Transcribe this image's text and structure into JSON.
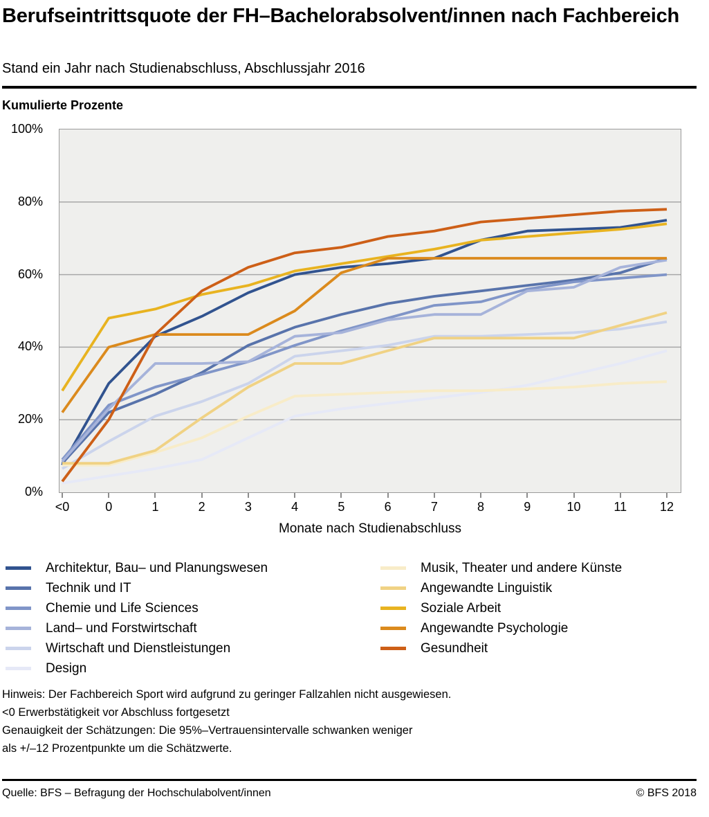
{
  "header": {
    "title": "Berufseintrittsquote der FH–Bachelorabsolvent/innen nach Fachbereich",
    "subtitle": "Stand ein Jahr nach Studienabschluss, Abschlussjahr 2016"
  },
  "chart_data": {
    "type": "line",
    "title": "Berufseintrittsquote der FH–Bachelorabsolvent/innen nach Fachbereich",
    "ylabel": "Kumulierte Prozente",
    "xlabel": "Monate nach Studienabschluss",
    "ylim": [
      0,
      100
    ],
    "grid": true,
    "legend_position": "bottom",
    "y_ticks": [
      0,
      20,
      40,
      60,
      80,
      100
    ],
    "y_tick_labels": [
      "0%",
      "20%",
      "40%",
      "60%",
      "80%",
      "100%"
    ],
    "categories": [
      "<0",
      "0",
      "1",
      "2",
      "3",
      "4",
      "5",
      "6",
      "7",
      "8",
      "9",
      "10",
      "11",
      "12"
    ],
    "series": [
      {
        "name": "Architektur, Bau– und Planungswesen",
        "color": "#31538f",
        "values": [
          7.5,
          30,
          43,
          48.5,
          55,
          60,
          62,
          63,
          64.5,
          69.5,
          72,
          72.5,
          73,
          75
        ]
      },
      {
        "name": "Technik und IT",
        "color": "#5873ab",
        "values": [
          8,
          22,
          27,
          33,
          40.5,
          45.5,
          49,
          52,
          54,
          55.5,
          57,
          58.5,
          60.5,
          64.5
        ]
      },
      {
        "name": "Chemie und Life Sciences",
        "color": "#8095c8",
        "values": [
          9,
          24,
          29,
          32.5,
          36,
          40.5,
          44.5,
          48,
          51.5,
          52.5,
          56,
          58,
          59,
          60
        ]
      },
      {
        "name": "Land– und Forstwirtschaft",
        "color": "#a6b3da",
        "values": [
          8.5,
          23,
          35.5,
          35.5,
          36,
          43,
          44,
          47.5,
          49,
          49,
          55.5,
          56.5,
          62,
          64
        ]
      },
      {
        "name": "Wirtschaft und Dienstleistungen",
        "color": "#cbd4ec",
        "values": [
          6.5,
          14,
          21,
          25,
          30,
          37.5,
          39,
          40.5,
          43,
          43,
          43.5,
          44,
          45,
          47
        ]
      },
      {
        "name": "Design",
        "color": "#e6e9f7",
        "values": [
          2.5,
          4.5,
          6.5,
          9,
          15,
          21,
          23,
          24.5,
          26,
          27.5,
          29.5,
          32.5,
          35.5,
          39
        ]
      },
      {
        "name": "Musik, Theater und andere Künste",
        "color": "#f8ecc8",
        "values": [
          7.5,
          7.5,
          11,
          15,
          21,
          26.5,
          27,
          27.5,
          28,
          28,
          28.5,
          29,
          30,
          30.5
        ]
      },
      {
        "name": "Angewandte Linguistik",
        "color": "#f0d284",
        "values": [
          8,
          8,
          11.5,
          20.5,
          29,
          35.5,
          35.5,
          39,
          42.5,
          42.5,
          42.5,
          42.5,
          46,
          49.5
        ]
      },
      {
        "name": "Soziale Arbeit",
        "color": "#e8b320",
        "values": [
          28,
          48,
          50.5,
          54.5,
          57,
          61,
          63,
          65,
          67,
          69.5,
          70.5,
          71.5,
          72.5,
          74
        ]
      },
      {
        "name": "Angewandte Psychologie",
        "color": "#db8a1d",
        "values": [
          22,
          40,
          43.5,
          43.5,
          43.5,
          50,
          60.5,
          64.5,
          64.5,
          64.5,
          64.5,
          64.5,
          64.5,
          64.5
        ]
      },
      {
        "name": "Gesundheit",
        "color": "#cd5f17",
        "values": [
          3,
          20,
          43.5,
          55.5,
          62,
          66,
          67.5,
          70.5,
          72,
          74.5,
          75.5,
          76.5,
          77.5,
          78
        ]
      }
    ]
  },
  "legend": {
    "column_break": 6
  },
  "notes": [
    "Hinweis: Der Fachbereich Sport wird aufgrund zu geringer Fallzahlen nicht ausgewiesen.",
    "<0 Erwerbstätigkeit vor Abschluss fortgesetzt",
    "Genauigkeit der Schätzungen: Die 95%–Vertrauensintervalle schwanken weniger",
    "als +/–12 Prozentpunkte um die Schätzwerte."
  ],
  "footer": {
    "source": "Quelle: BFS – Befragung der Hochschulabolvent/innen",
    "copyright": "© BFS 2018"
  }
}
